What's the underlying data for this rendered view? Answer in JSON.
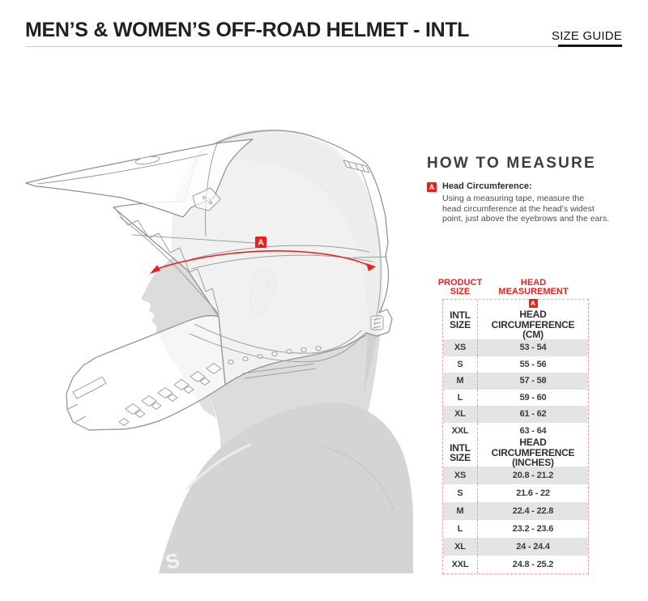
{
  "header": {
    "title": "MEN’S & WOMEN’S OFF-ROAD HELMET - INTL",
    "size_guide_label": "SIZE GUIDE"
  },
  "how_to_measure": {
    "heading": "HOW TO MEASURE",
    "marker": "A",
    "item_title": "Head Circumference:",
    "lines": [
      "Using a measuring tape, measure the",
      "head circumference at the head’s widest",
      "point, just above the eyebrows and the ears."
    ]
  },
  "illustration": {
    "marker": "A",
    "shirt_letter": "S"
  },
  "size_table": {
    "product_col_header": [
      "PRODUCT",
      "SIZE"
    ],
    "measurement_col_header": [
      "HEAD",
      "MEASUREMENT"
    ],
    "marker": "A",
    "sections": [
      {
        "label": [
          "INTL",
          "SIZE"
        ],
        "measure": [
          "HEAD CIRCUMFERENCE",
          "(CM)"
        ],
        "show_marker": true,
        "rows": [
          [
            "XS",
            "53 - 54"
          ],
          [
            "S",
            "55 - 56"
          ],
          [
            "M",
            "57 - 58"
          ],
          [
            "L",
            "59 - 60"
          ],
          [
            "XL",
            "61 - 62"
          ],
          [
            "XXL",
            "63 - 64"
          ]
        ]
      },
      {
        "label": [
          "INTL",
          "SIZE"
        ],
        "measure": [
          "HEAD CIRCUMFERENCE",
          "(INCHES)"
        ],
        "show_marker": false,
        "rows": [
          [
            "XS",
            "20.8 - 21.2"
          ],
          [
            "S",
            "21.6 - 22"
          ],
          [
            "M",
            "22.4 - 22.8"
          ],
          [
            "L",
            "23.2 - 23.6"
          ],
          [
            "XL",
            "24 - 24.4"
          ],
          [
            "XXL",
            "24.8 - 25.2"
          ]
        ]
      }
    ]
  },
  "chart_data": {
    "type": "table",
    "title": "MEN’S & WOMEN’S OFF-ROAD HELMET - INTL",
    "columns": [
      "PRODUCT SIZE",
      "HEAD MEASUREMENT"
    ],
    "sections": [
      {
        "unit": "HEAD CIRCUMFERENCE (CM)",
        "rows": [
          [
            "XS",
            "53 - 54"
          ],
          [
            "S",
            "55 - 56"
          ],
          [
            "M",
            "57 - 58"
          ],
          [
            "L",
            "59 - 60"
          ],
          [
            "XL",
            "61 - 62"
          ],
          [
            "XXL",
            "63 - 64"
          ]
        ]
      },
      {
        "unit": "HEAD CIRCUMFERENCE (INCHES)",
        "rows": [
          [
            "XS",
            "20.8 - 21.2"
          ],
          [
            "S",
            "21.6 - 22"
          ],
          [
            "M",
            "22.4 - 22.8"
          ],
          [
            "L",
            "23.2 - 23.6"
          ],
          [
            "XL",
            "24 - 24.4"
          ],
          [
            "XXL",
            "24.8 - 25.2"
          ]
        ]
      }
    ]
  },
  "colors": {
    "accent_red": "#e8231f",
    "row_stripe": "#e4e4e4"
  }
}
